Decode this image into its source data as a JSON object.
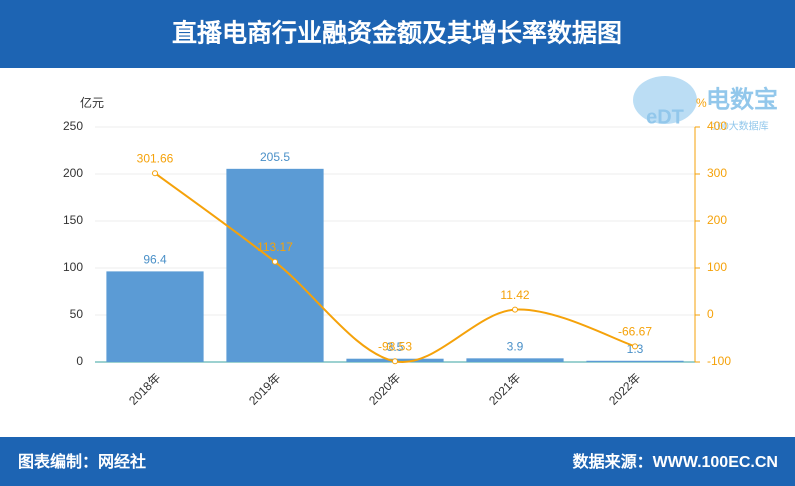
{
  "title": "直播电商行业融资金额及其增长率数据图",
  "footer": {
    "left": "图表编制：网经社",
    "right": "数据来源：WWW.100EC.CN"
  },
  "logo": {
    "mark": "eDT",
    "name": "电数宝",
    "subtitle": "100大数据库"
  },
  "chart_data": {
    "type": "combo",
    "y_label": "亿元",
    "y2_label": "%",
    "categories": [
      "2018年",
      "2019年",
      "2020年",
      "2021年",
      "2022年"
    ],
    "series": [
      {
        "type": "bar",
        "color": "#5b9bd5",
        "values": [
          96.4,
          205.5,
          3.5,
          3.9,
          1.3
        ]
      },
      {
        "type": "line",
        "color": "#f5a20a",
        "axis": "y2",
        "values": [
          301.66,
          113.17,
          -98.53,
          11.42,
          -66.67
        ]
      }
    ],
    "ylim": [
      0,
      250
    ],
    "yticks": [
      0,
      50,
      100,
      150,
      200,
      250
    ],
    "y2lim": [
      -100,
      400
    ],
    "y2ticks": [
      -100,
      0,
      100,
      200,
      300,
      400
    ],
    "grid": true
  }
}
